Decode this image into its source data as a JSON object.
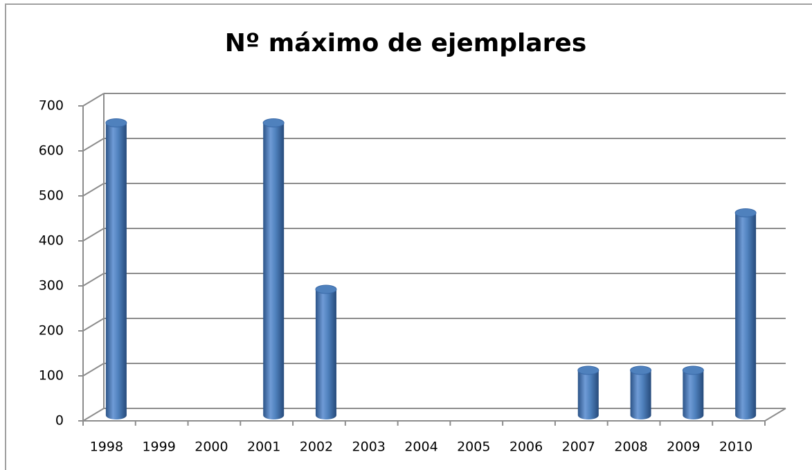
{
  "chart_data": {
    "type": "bar",
    "title": "Nº máximo de ejemplares",
    "categories": [
      "1998",
      "1999",
      "2000",
      "2001",
      "2002",
      "2003",
      "2004",
      "2005",
      "2006",
      "2007",
      "2008",
      "2009",
      "2010"
    ],
    "values": [
      650,
      null,
      null,
      650,
      280,
      null,
      null,
      null,
      null,
      100,
      100,
      100,
      450
    ],
    "color": "#4f81bd",
    "ylim": [
      0,
      700
    ],
    "yticks": [
      0,
      100,
      200,
      300,
      400,
      500,
      600,
      700
    ],
    "grid": true
  }
}
